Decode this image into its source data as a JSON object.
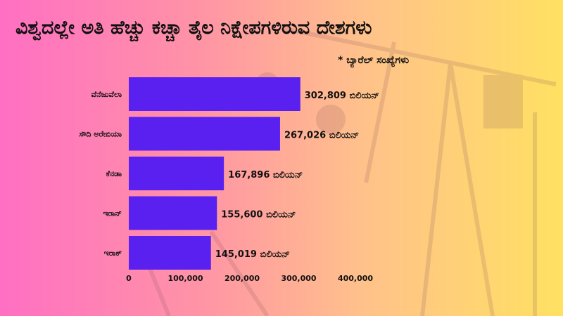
{
  "title": "ವಿಶ್ವದಲ್ಲೇ ಅತಿ ಹೆಚ್ಚು ಕಚ್ಚಾ ತೈಲ ನಿಕ್ಷೇಪಗಳಿರುವ ದೇಶಗಳು",
  "note": "* ಬ್ಯಾರೆಲ್ ಸಂಖ್ಯೆಗಳು",
  "colors": {
    "bar": "#5a20f0",
    "background_left": "#ff6fc3",
    "background_right": "#ffe162"
  },
  "chart_data": {
    "type": "bar",
    "orientation": "horizontal",
    "categories": [
      "ವೆನೆಜುವೆಲಾ",
      "ಸೌದಿ ಅರೇಬಿಯಾ",
      "ಕೆನಡಾ",
      "ಇರಾನ್",
      "ಇರಾಕ್"
    ],
    "values": [
      302809,
      267026,
      167896,
      155600,
      145019
    ],
    "data_labels": [
      "302,809 ಬಿಲಿಯನ್",
      "267,026 ಬಿಲಿಯನ್",
      "167,896 ಬಿಲಿಯನ್",
      "155,600 ಬಿಲಿಯನ್",
      "145,019 ಬಿಲಿಯನ್"
    ],
    "x_ticks": [
      0,
      100000,
      200000,
      300000,
      400000
    ],
    "x_tick_labels": [
      "0",
      "100,000",
      "200,000",
      "300,000",
      "400,000"
    ],
    "xlim": [
      0,
      400000
    ],
    "grid": false,
    "legend": "none"
  }
}
